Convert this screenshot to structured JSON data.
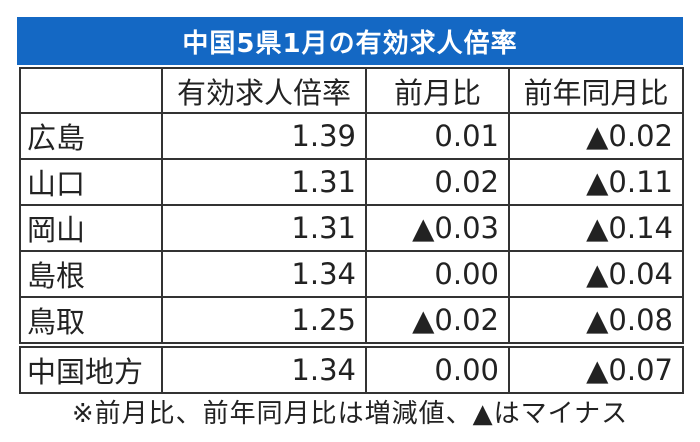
{
  "title": "中国5県1月の有効求人倍率",
  "colors": {
    "title_background": "#1468c4",
    "title_text": "#ffffff",
    "border": "#333333",
    "text": "#222222"
  },
  "table": {
    "headers": [
      "",
      "有効求人倍率",
      "前月比",
      "前年同月比"
    ],
    "rows": [
      {
        "name": "広島",
        "ratio": "1.39",
        "mom": "0.01",
        "yoy": "▲0.02"
      },
      {
        "name": "山口",
        "ratio": "1.31",
        "mom": "0.02",
        "yoy": "▲0.11"
      },
      {
        "name": "岡山",
        "ratio": "1.31",
        "mom": "▲0.03",
        "yoy": "▲0.14"
      },
      {
        "name": "島根",
        "ratio": "1.34",
        "mom": "0.00",
        "yoy": "▲0.04"
      },
      {
        "name": "鳥取",
        "ratio": "1.25",
        "mom": "▲0.02",
        "yoy": "▲0.08"
      }
    ],
    "total": {
      "name": "中国地方",
      "ratio": "1.34",
      "mom": "0.00",
      "yoy": "▲0.07"
    }
  },
  "footnote": "※前月比、前年同月比は増減値、▲はマイナス"
}
